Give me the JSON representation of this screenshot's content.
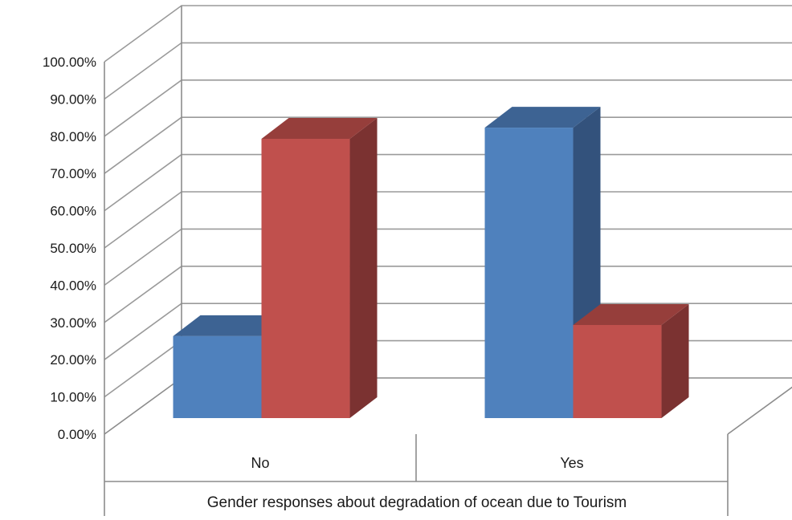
{
  "chart_data": {
    "type": "bar",
    "title": "",
    "xlabel": "Gender responses about degradation of ocean due to Tourism",
    "ylabel": "",
    "categories": [
      "No",
      "Yes"
    ],
    "series": [
      {
        "color": "#4f81bd",
        "top_color": "#3d6393",
        "side_color": "#33527c",
        "values": [
          0.22,
          0.78
        ]
      },
      {
        "color": "#c0504d",
        "top_color": "#963e3b",
        "side_color": "#7b3231",
        "values": [
          0.75,
          0.25
        ]
      }
    ],
    "ylim": [
      0,
      1
    ],
    "yticks": [
      0,
      0.1,
      0.2,
      0.3,
      0.4,
      0.5,
      0.6,
      0.7,
      0.8,
      0.9,
      1.0
    ],
    "ytick_labels": [
      "0.00%",
      "10.00%",
      "20.00%",
      "30.00%",
      "40.00%",
      "50.00%",
      "60.00%",
      "70.00%",
      "80.00%",
      "90.00%",
      "100.00%"
    ],
    "grid": true,
    "legend": "none",
    "style": "3d-clustered-column"
  }
}
